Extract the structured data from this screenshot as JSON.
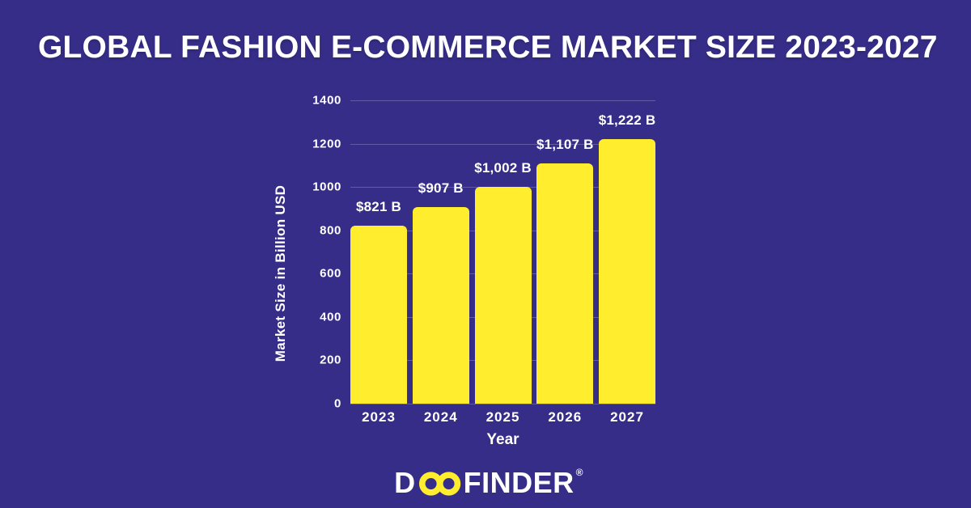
{
  "page": {
    "title": "GLOBAL FASHION E-COMMERCE MARKET SIZE 2023-2027"
  },
  "colors": {
    "background": "#362D88",
    "bar": "#FFED2E",
    "text": "#FFFFFF",
    "gridline": "rgba(255,255,255,0.22)"
  },
  "chart_data": {
    "type": "bar",
    "categories": [
      "2023",
      "2024",
      "2025",
      "2026",
      "2027"
    ],
    "values": [
      821,
      907,
      1002,
      1107,
      1222
    ],
    "value_labels": [
      "$821 B",
      "$907 B",
      "$1,002 B",
      "$1,107 B",
      "$1,222 B"
    ],
    "title": "GLOBAL FASHION E-COMMERCE MARKET SIZE 2023-2027",
    "xlabel": "Year",
    "ylabel": "Market Size in Billion USD",
    "ylim": [
      0,
      1400
    ],
    "yticks": [
      0,
      200,
      400,
      600,
      800,
      1000,
      1200,
      1400
    ],
    "grid": true,
    "legend": "none",
    "bar_color": "#FFED2E",
    "label_color": "#FFFFFF"
  },
  "footer": {
    "logo_d": "D",
    "logo_oo_icon": "infinity-icon",
    "logo_rest": "FINDER",
    "logo_reg": "®"
  }
}
